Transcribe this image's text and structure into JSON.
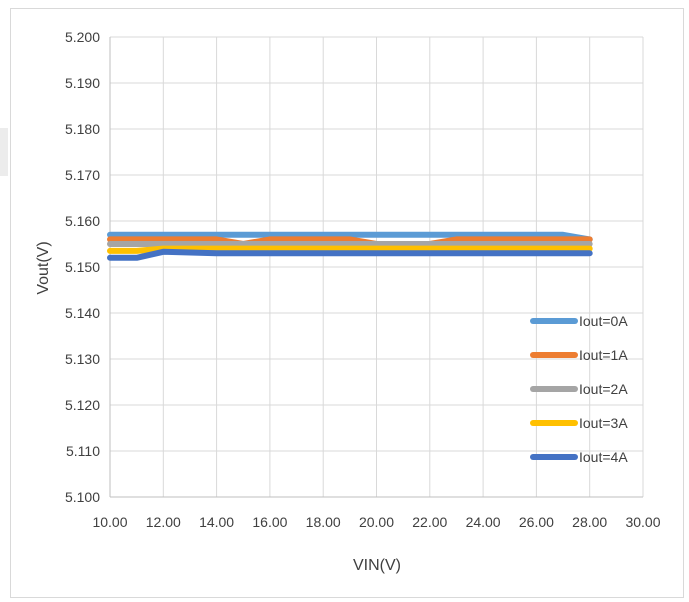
{
  "chart_data": {
    "type": "line",
    "title": "",
    "xlabel": "VIN(V)",
    "ylabel": "Vout(V)",
    "xlim": [
      10,
      30
    ],
    "ylim": [
      5.1,
      5.2
    ],
    "x_ticks": [
      "10.00",
      "12.00",
      "14.00",
      "16.00",
      "18.00",
      "20.00",
      "22.00",
      "24.00",
      "26.00",
      "28.00",
      "30.00"
    ],
    "y_ticks": [
      "5.100",
      "5.110",
      "5.120",
      "5.130",
      "5.140",
      "5.150",
      "5.160",
      "5.170",
      "5.180",
      "5.190",
      "5.200"
    ],
    "grid": true,
    "legend_position": "right",
    "series": [
      {
        "name": "Iout=0A",
        "color": "#5b9bd5",
        "x": [
          10,
          12,
          14,
          16,
          18,
          20,
          22,
          24,
          26,
          27,
          28
        ],
        "y": [
          5.157,
          5.157,
          5.157,
          5.157,
          5.157,
          5.157,
          5.157,
          5.157,
          5.157,
          5.157,
          5.156
        ]
      },
      {
        "name": "Iout=1A",
        "color": "#ed7d31",
        "x": [
          10,
          12,
          14,
          15,
          16,
          18,
          19,
          20,
          22,
          23,
          24,
          26,
          28
        ],
        "y": [
          5.156,
          5.156,
          5.156,
          5.155,
          5.156,
          5.156,
          5.156,
          5.155,
          5.155,
          5.156,
          5.156,
          5.156,
          5.156
        ]
      },
      {
        "name": "Iout=2A",
        "color": "#a5a5a5",
        "x": [
          10,
          12,
          14,
          16,
          18,
          20,
          22,
          24,
          26,
          28
        ],
        "y": [
          5.155,
          5.155,
          5.155,
          5.155,
          5.155,
          5.155,
          5.155,
          5.155,
          5.155,
          5.155
        ]
      },
      {
        "name": "Iout=3A",
        "color": "#ffc000",
        "x": [
          10,
          11,
          12,
          14,
          16,
          18,
          20,
          22,
          24,
          26,
          28
        ],
        "y": [
          5.1535,
          5.1535,
          5.154,
          5.154,
          5.154,
          5.154,
          5.154,
          5.154,
          5.154,
          5.154,
          5.154
        ]
      },
      {
        "name": "Iout=4A",
        "color": "#4472c4",
        "x": [
          10,
          11,
          12,
          14,
          16,
          18,
          20,
          22,
          24,
          26,
          28
        ],
        "y": [
          5.152,
          5.152,
          5.1533,
          5.153,
          5.153,
          5.153,
          5.153,
          5.153,
          5.153,
          5.153,
          5.153
        ]
      }
    ]
  }
}
